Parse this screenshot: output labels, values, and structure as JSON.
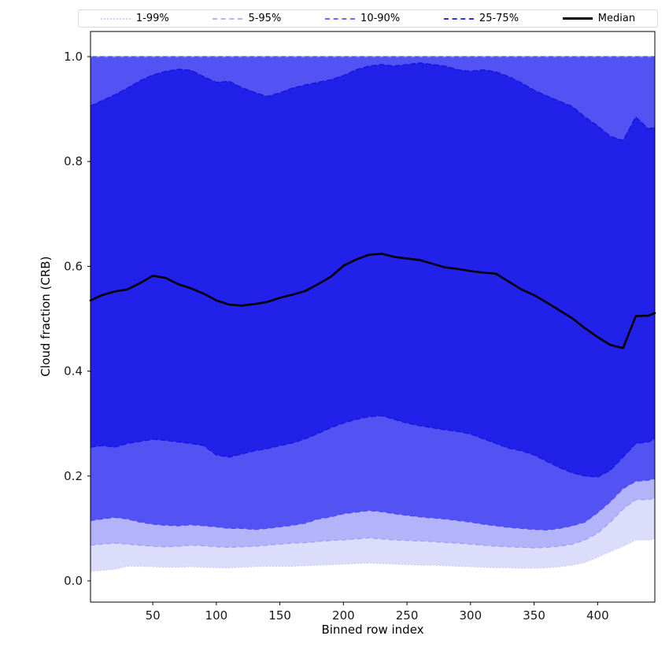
{
  "chart_data": {
    "type": "area",
    "title": "",
    "xlabel": "Binned row index",
    "ylabel": "Cloud fraction (CRB)",
    "xlim": [
      1,
      445
    ],
    "ylim": [
      -0.0405,
      1.048
    ],
    "xticks": [
      50,
      100,
      150,
      200,
      250,
      300,
      350,
      400
    ],
    "xtick_labels": [
      "50",
      "100",
      "150",
      "200",
      "250",
      "300",
      "350",
      "400"
    ],
    "yticks": [
      0.0,
      0.2,
      0.4,
      0.6,
      0.8,
      1.0
    ],
    "ytick_labels": [
      "0.0",
      "0.2",
      "0.4",
      "0.6",
      "0.8",
      "1.0"
    ],
    "grid": false,
    "legend_position": "top",
    "x": [
      1,
      10,
      20,
      30,
      40,
      50,
      60,
      70,
      80,
      90,
      100,
      110,
      120,
      130,
      140,
      150,
      160,
      170,
      180,
      190,
      200,
      210,
      220,
      230,
      240,
      250,
      260,
      270,
      280,
      290,
      300,
      310,
      320,
      330,
      340,
      350,
      360,
      370,
      380,
      390,
      400,
      410,
      420,
      430,
      440,
      445
    ],
    "series": {
      "median": [
        0.535,
        0.545,
        0.552,
        0.556,
        0.568,
        0.582,
        0.578,
        0.566,
        0.558,
        0.548,
        0.535,
        0.527,
        0.525,
        0.528,
        0.532,
        0.54,
        0.546,
        0.553,
        0.566,
        0.58,
        0.601,
        0.613,
        0.622,
        0.624,
        0.618,
        0.615,
        0.612,
        0.605,
        0.598,
        0.595,
        0.591,
        0.588,
        0.586,
        0.571,
        0.556,
        0.545,
        0.531,
        0.516,
        0.501,
        0.482,
        0.465,
        0.45,
        0.444,
        0.505,
        0.506,
        0.511
      ],
      "p75": [
        0.906,
        0.916,
        0.927,
        0.94,
        0.954,
        0.965,
        0.972,
        0.976,
        0.974,
        0.962,
        0.951,
        0.953,
        0.941,
        0.932,
        0.924,
        0.931,
        0.94,
        0.946,
        0.951,
        0.956,
        0.964,
        0.975,
        0.982,
        0.985,
        0.982,
        0.985,
        0.988,
        0.985,
        0.982,
        0.975,
        0.972,
        0.975,
        0.971,
        0.962,
        0.95,
        0.936,
        0.925,
        0.915,
        0.905,
        0.885,
        0.868,
        0.848,
        0.84,
        0.885,
        0.862,
        0.866
      ],
      "p25": [
        0.255,
        0.258,
        0.255,
        0.262,
        0.266,
        0.27,
        0.268,
        0.265,
        0.262,
        0.258,
        0.24,
        0.236,
        0.242,
        0.248,
        0.252,
        0.258,
        0.263,
        0.271,
        0.281,
        0.292,
        0.301,
        0.308,
        0.313,
        0.315,
        0.308,
        0.301,
        0.296,
        0.292,
        0.288,
        0.285,
        0.28,
        0.271,
        0.262,
        0.253,
        0.248,
        0.24,
        0.228,
        0.216,
        0.206,
        0.2,
        0.198,
        0.211,
        0.236,
        0.262,
        0.265,
        0.271
      ],
      "p10": [
        0.115,
        0.118,
        0.121,
        0.118,
        0.112,
        0.108,
        0.106,
        0.105,
        0.107,
        0.105,
        0.103,
        0.1,
        0.1,
        0.098,
        0.1,
        0.103,
        0.106,
        0.11,
        0.118,
        0.122,
        0.128,
        0.131,
        0.134,
        0.132,
        0.128,
        0.125,
        0.122,
        0.12,
        0.118,
        0.115,
        0.112,
        0.108,
        0.105,
        0.102,
        0.1,
        0.098,
        0.097,
        0.1,
        0.105,
        0.112,
        0.13,
        0.151,
        0.176,
        0.19,
        0.192,
        0.195
      ],
      "p5": [
        0.068,
        0.07,
        0.072,
        0.07,
        0.068,
        0.066,
        0.065,
        0.066,
        0.068,
        0.067,
        0.065,
        0.064,
        0.065,
        0.066,
        0.068,
        0.07,
        0.072,
        0.073,
        0.075,
        0.077,
        0.078,
        0.08,
        0.082,
        0.08,
        0.078,
        0.077,
        0.076,
        0.075,
        0.073,
        0.072,
        0.07,
        0.068,
        0.066,
        0.065,
        0.064,
        0.063,
        0.064,
        0.066,
        0.07,
        0.078,
        0.091,
        0.112,
        0.137,
        0.155,
        0.155,
        0.158
      ],
      "p1": [
        0.018,
        0.02,
        0.022,
        0.028,
        0.028,
        0.027,
        0.026,
        0.026,
        0.027,
        0.026,
        0.025,
        0.025,
        0.026,
        0.027,
        0.028,
        0.028,
        0.028,
        0.029,
        0.03,
        0.031,
        0.032,
        0.033,
        0.034,
        0.033,
        0.032,
        0.031,
        0.03,
        0.03,
        0.029,
        0.028,
        0.027,
        0.026,
        0.025,
        0.025,
        0.024,
        0.024,
        0.025,
        0.027,
        0.03,
        0.035,
        0.045,
        0.056,
        0.066,
        0.078,
        0.078,
        0.08
      ]
    },
    "bands": [
      {
        "name": "1-99%",
        "lower_key": "p1",
        "upper": 1.0,
        "fill": "#dcdcfb",
        "line": "#c6c6f2",
        "dash": "1.5 2.5"
      },
      {
        "name": "5-95%",
        "lower_key": "p5",
        "upper": 1.0,
        "fill": "#b3b3fa",
        "line": "#9e9ef1",
        "dash": "6 4"
      },
      {
        "name": "10-90%",
        "lower_key": "p10",
        "upper": 1.0,
        "fill": "#5353f4",
        "line": "#4a4af0",
        "dash": "6 4"
      },
      {
        "name": "25-75%",
        "lower_key": "p25",
        "upper_key": "p75",
        "fill": "#2121ea",
        "line": "#1414dc",
        "dash": "7 3"
      }
    ],
    "median_style": {
      "color": "#000000",
      "width": 2.6
    },
    "legend": [
      {
        "label": "1-99%",
        "color": "#d0d0f7",
        "style": "dotted",
        "width": 2
      },
      {
        "label": "5-95%",
        "color": "#b3b3fa",
        "style": "dashed",
        "width": 2
      },
      {
        "label": "10-90%",
        "color": "#6a6af5",
        "style": "dashed",
        "width": 2
      },
      {
        "label": "25-75%",
        "color": "#3232ee",
        "style": "dashed",
        "width": 2
      },
      {
        "label": "Median",
        "color": "#000000",
        "style": "solid",
        "width": 3
      }
    ]
  }
}
